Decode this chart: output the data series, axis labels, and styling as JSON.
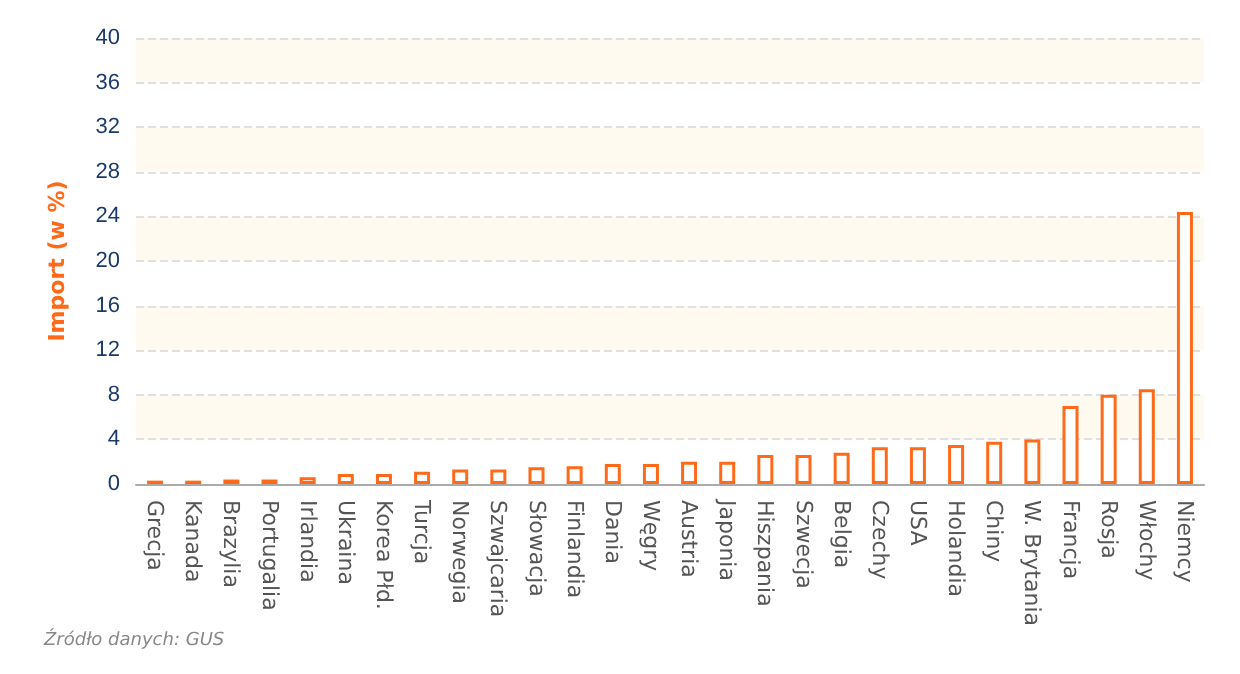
{
  "chart_data": {
    "type": "bar",
    "ylabel": "Import (w %)",
    "categories": [
      "Grecja",
      "Kanada",
      "Brazylia",
      "Portugalia",
      "Irlandia",
      "Ukraina",
      "Korea Płd.",
      "Turcja",
      "Norwegia",
      "Szwajcaria",
      "Słowacja",
      "Finlandia",
      "Dania",
      "Węgry",
      "Austria",
      "Japonia",
      "Hiszpania",
      "Szwecja",
      "Belgia",
      "Czechy",
      "USA",
      "Holandia",
      "Chiny",
      "W. Brytania",
      "Francja",
      "Rosja",
      "Włochy",
      "Niemcy"
    ],
    "values": [
      0.3,
      0.3,
      0.4,
      0.4,
      0.6,
      0.9,
      0.9,
      1.1,
      1.3,
      1.3,
      1.5,
      1.6,
      1.8,
      1.8,
      2.0,
      2.0,
      2.6,
      2.6,
      2.8,
      3.3,
      3.3,
      3.5,
      3.8,
      4.0,
      7.0,
      8.0,
      8.5,
      24.4
    ],
    "color": "#ff6a1a",
    "ylim": [
      0,
      40
    ],
    "yticks": [
      0,
      4,
      8,
      12,
      16,
      20,
      24,
      28,
      32,
      36,
      40
    ],
    "grid": "y",
    "annotations": [
      "Źródło danych: GUS"
    ]
  }
}
